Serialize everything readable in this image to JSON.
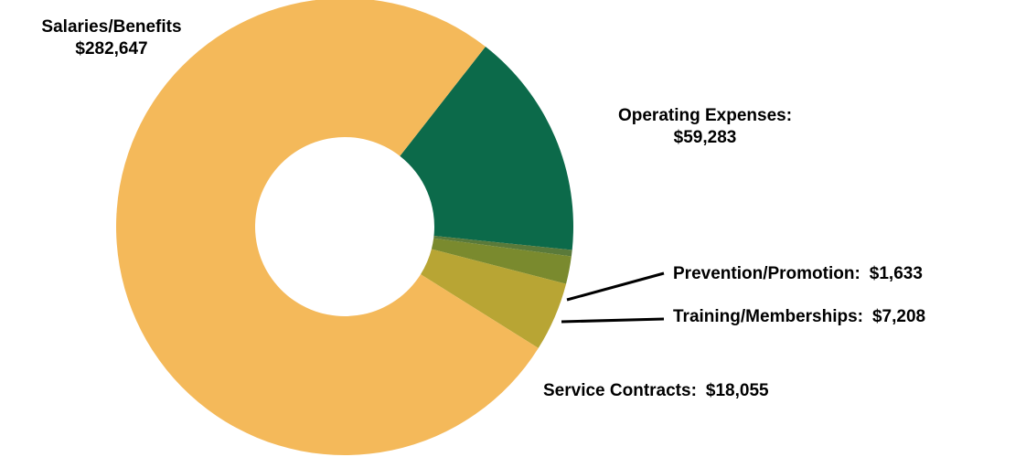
{
  "chart_data": {
    "type": "pie",
    "style": "donut",
    "currency": "$",
    "slices": [
      {
        "name": "Operating Expenses:",
        "value": 59283,
        "label": "$59,283",
        "color": "#0c6a4a"
      },
      {
        "name": "Prevention/Promotion:",
        "value": 1633,
        "label": "$1,633",
        "color": "#5a7a3a"
      },
      {
        "name": "Training/Memberships:",
        "value": 7208,
        "label": "$7,208",
        "color": "#7a8a2e"
      },
      {
        "name": "Service Contracts:",
        "value": 18055,
        "label": "$18,055",
        "color": "#b8a534"
      },
      {
        "name": "Salaries/Benefits",
        "value": 282647,
        "label": "$282,647",
        "color": "#f4b95a"
      }
    ],
    "legend": "none"
  }
}
